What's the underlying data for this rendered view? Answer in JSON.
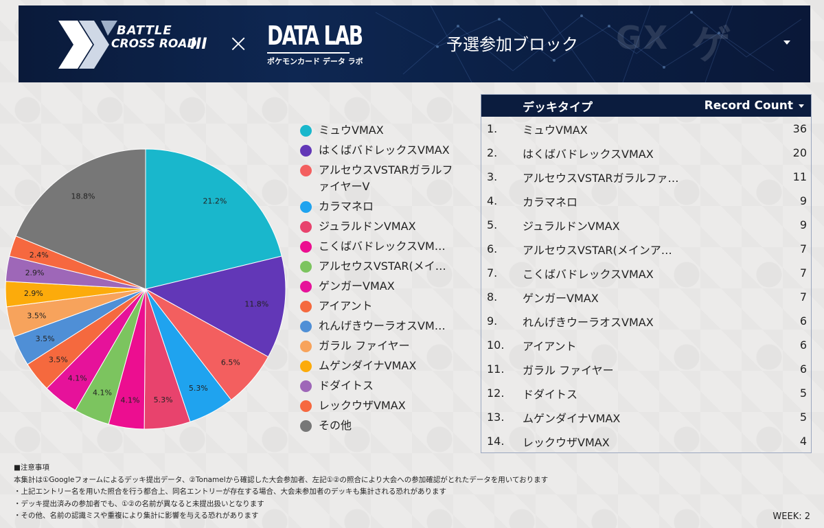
{
  "header": {
    "logo_line1": "BATTLE",
    "logo_line2": "CROSS ROAD",
    "logo_roman": "III",
    "times": "×",
    "datalab_title": "DATA LAB",
    "datalab_sub": "ポケモンカード データ ラボ",
    "block_label": "予選参加ブロック"
  },
  "legend": [
    {
      "label": "ミュウVMAX",
      "color": "#19b7cc"
    },
    {
      "label": "はくばバドレックスVMAX",
      "color": "#6237b7"
    },
    {
      "label": "アルセウスVSTARガラルファイヤーV",
      "color": "#f35f5f"
    },
    {
      "label": "カラマネロ",
      "color": "#1fa3ef"
    },
    {
      "label": "ジュラルドンVMAX",
      "color": "#e8436d"
    },
    {
      "label": "こくばバドレックスVM…",
      "color": "#ec0e90"
    },
    {
      "label": "アルセウスVSTAR(メイ…",
      "color": "#7cc45f"
    },
    {
      "label": "ゲンガーVMAX",
      "color": "#e6129a"
    },
    {
      "label": "アイアント",
      "color": "#f5693e"
    },
    {
      "label": "れんげきウーラオスVM…",
      "color": "#4f8fd6"
    },
    {
      "label": "ガラル ファイヤー",
      "color": "#f7a35c"
    },
    {
      "label": "ムゲンダイナVMAX",
      "color": "#fcab0b"
    },
    {
      "label": "ドダイトス",
      "color": "#9e67b8"
    },
    {
      "label": "レックウザVMAX",
      "color": "#f6683f"
    },
    {
      "label": "その他",
      "color": "#777777"
    }
  ],
  "chart_data": {
    "type": "pie",
    "slices": [
      {
        "label": "ミュウVMAX",
        "pct": 21.2,
        "pct_label": "21.2%"
      },
      {
        "label": "はくばバドレックスVMAX",
        "pct": 11.8,
        "pct_label": "11.8%"
      },
      {
        "label": "アルセウスVSTARガラルファイヤーV",
        "pct": 6.5,
        "pct_label": "6.5%"
      },
      {
        "label": "カラマネロ",
        "pct": 5.3,
        "pct_label": "5.3%"
      },
      {
        "label": "ジュラルドンVMAX",
        "pct": 5.3,
        "pct_label": "5.3%"
      },
      {
        "label": "こくばバドレックスVMAX",
        "pct": 4.1,
        "pct_label": "4.1%"
      },
      {
        "label": "アルセウスVSTAR(メインアタッカー)",
        "pct": 4.1,
        "pct_label": "4.1%"
      },
      {
        "label": "ゲンガーVMAX",
        "pct": 4.1,
        "pct_label": "4.1%"
      },
      {
        "label": "アイアント",
        "pct": 3.5,
        "pct_label": "3.5%"
      },
      {
        "label": "れんげきウーラオスVMAX",
        "pct": 3.5,
        "pct_label": "3.5%"
      },
      {
        "label": "ガラル ファイヤー",
        "pct": 3.5,
        "pct_label": "3.5%"
      },
      {
        "label": "ムゲンダイナVMAX",
        "pct": 2.9,
        "pct_label": "2.9%"
      },
      {
        "label": "ドダイトス",
        "pct": 2.9,
        "pct_label": "2.9%"
      },
      {
        "label": "レックウザVMAX",
        "pct": 2.4,
        "pct_label": "2.4%"
      },
      {
        "label": "その他",
        "pct": 18.8,
        "pct_label": "18.8%"
      }
    ]
  },
  "table": {
    "col_name": "デッキタイプ",
    "col_count": "Record Count",
    "rows": [
      {
        "idx": "1.",
        "name": "ミュウVMAX",
        "count": "36"
      },
      {
        "idx": "2.",
        "name": "はくばバドレックスVMAX",
        "count": "20"
      },
      {
        "idx": "3.",
        "name": "アルセウスVSTARガラルファ…",
        "count": "11"
      },
      {
        "idx": "4.",
        "name": "カラマネロ",
        "count": "9"
      },
      {
        "idx": "5.",
        "name": "ジュラルドンVMAX",
        "count": "9"
      },
      {
        "idx": "6.",
        "name": "アルセウスVSTAR(メインア…",
        "count": "7"
      },
      {
        "idx": "7.",
        "name": "こくばバドレックスVMAX",
        "count": "7"
      },
      {
        "idx": "8.",
        "name": "ゲンガーVMAX",
        "count": "7"
      },
      {
        "idx": "9.",
        "name": "れんげきウーラオスVMAX",
        "count": "6"
      },
      {
        "idx": "10.",
        "name": "アイアント",
        "count": "6"
      },
      {
        "idx": "11.",
        "name": "ガラル ファイヤー",
        "count": "6"
      },
      {
        "idx": "12.",
        "name": "ドダイトス",
        "count": "5"
      },
      {
        "idx": "13.",
        "name": "ムゲンダイナVMAX",
        "count": "5"
      },
      {
        "idx": "14.",
        "name": "レックウザVMAX",
        "count": "4"
      }
    ]
  },
  "notes": {
    "title": "■注意事項",
    "lines": [
      "本集計は①Googleフォームによるデッキ提出データ、②Tonamelから確認した大会参加者、左記①②の照合により大会への参加確認がとれたデータを用いております",
      "・上記エントリー名を用いた照合を行う都合上、同名エントリーが存在する場合、大会未参加者のデッキも集計される恐れがあります",
      "・デッキ提出済みの参加者でも、①②の名前が異なると未提出扱いとなります",
      "・その他、名前の認識ミスや重複により集計に影響を与える恐れがあります"
    ]
  },
  "week": "WEEK: 2"
}
